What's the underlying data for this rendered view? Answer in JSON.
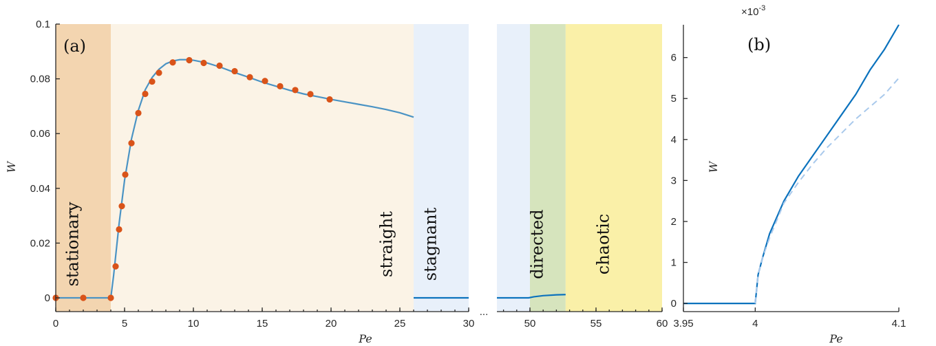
{
  "chart_data": [
    {
      "panel_label": "(a)",
      "type": "line",
      "xlabel": "Pe",
      "ylabel": "W",
      "ylim": [
        0,
        0.1
      ],
      "yticks": [
        "0",
        "0.02",
        "0.04",
        "0.06",
        "0.08",
        "0.1"
      ],
      "left_axis": {
        "xlim": [
          0,
          30
        ],
        "xticks": [
          "0",
          "5",
          "10",
          "15",
          "20",
          "25",
          "30"
        ]
      },
      "right_axis": {
        "xlim": [
          47.5,
          60
        ],
        "xticks": [
          "50",
          "55",
          "60"
        ]
      },
      "break_marker": "...",
      "regions": [
        {
          "label": "stationary",
          "x0": 0,
          "x1": 4,
          "color": "#f3d5b0"
        },
        {
          "label": "straight",
          "x0": 4,
          "x1": 26,
          "color": "#fbf3e6"
        },
        {
          "label": "stagnant",
          "x0": 26,
          "x1": 30,
          "color": "#e8f0fa"
        },
        {
          "label": "",
          "x0": 47.5,
          "x1": 50,
          "color": "#e8f0fa"
        },
        {
          "label": "directed",
          "x0": 50,
          "x1": 52.7,
          "color": "#d6e4bd"
        },
        {
          "label": "chaotic",
          "x0": 52.7,
          "x1": 60,
          "color": "#faf0a8"
        }
      ],
      "series": [
        {
          "style": "line",
          "color": "#4a93c4",
          "x": [
            0,
            4,
            4.2,
            4.6,
            5.0,
            5.5,
            6.0,
            6.5,
            7.0,
            7.5,
            8.0,
            8.5,
            9.0,
            9.5,
            10.0,
            11.0,
            12.0,
            13.0,
            14.0,
            15.0,
            16.0,
            17.0,
            18.0,
            19.0,
            20.0,
            21.0,
            22.0,
            23.0,
            24.0,
            25.0,
            26.0
          ],
          "y": [
            0,
            0,
            0.008,
            0.027,
            0.043,
            0.058,
            0.0685,
            0.076,
            0.0805,
            0.0835,
            0.0855,
            0.0865,
            0.087,
            0.087,
            0.0868,
            0.0858,
            0.0842,
            0.0823,
            0.0806,
            0.0788,
            0.0773,
            0.0758,
            0.0745,
            0.0735,
            0.0725,
            0.0716,
            0.0707,
            0.0698,
            0.0688,
            0.0676,
            0.066
          ]
        },
        {
          "style": "markers",
          "color": "#d95319",
          "x": [
            0,
            2,
            4,
            4.35,
            4.6,
            4.8,
            5.05,
            5.5,
            6.0,
            6.5,
            7.0,
            7.5,
            8.5,
            9.7,
            10.75,
            11.9,
            13.0,
            14.1,
            15.2,
            16.3,
            17.4,
            18.5,
            19.9
          ],
          "y": [
            0,
            0,
            0,
            0.0115,
            0.025,
            0.0335,
            0.045,
            0.0565,
            0.0675,
            0.0745,
            0.079,
            0.0822,
            0.086,
            0.0868,
            0.0858,
            0.0848,
            0.0828,
            0.0806,
            0.0792,
            0.0773,
            0.0759,
            0.0744,
            0.0725
          ]
        },
        {
          "style": "line",
          "color": "#0b72bd",
          "x": [
            26,
            30
          ],
          "y": [
            0,
            0
          ]
        },
        {
          "style": "line",
          "color": "#0b72bd",
          "x": [
            47.5,
            49.9,
            50.3,
            51.0,
            52.0,
            52.7
          ],
          "y": [
            0,
            0,
            0.0004,
            0.0008,
            0.0011,
            0.0012
          ]
        }
      ]
    },
    {
      "panel_label": "(b)",
      "type": "line",
      "xlabel": "Pe",
      "ylabel": "W",
      "y_multiplier_label": "×10",
      "y_multiplier_exp": "-3",
      "xlim": [
        3.95,
        4.1
      ],
      "ylim": [
        -0.0002,
        0.0068
      ],
      "xticks": [
        "3.95",
        "4",
        "4.1"
      ],
      "yticks": [
        "0",
        "1",
        "2",
        "3",
        "4",
        "5",
        "6"
      ],
      "series": [
        {
          "style": "line",
          "color": "#0b72bd",
          "x": [
            3.95,
            4.0,
            4.002,
            4.005,
            4.01,
            4.02,
            4.03,
            4.04,
            4.05,
            4.06,
            4.07,
            4.08,
            4.09,
            4.1
          ],
          "y": [
            0,
            0,
            0.0007,
            0.0011,
            0.0017,
            0.0025,
            0.0031,
            0.0036,
            0.0041,
            0.0046,
            0.0051,
            0.0057,
            0.0062,
            0.0068
          ]
        },
        {
          "style": "dashed",
          "color": "#a9c9ec",
          "x": [
            4.0,
            4.002,
            4.005,
            4.01,
            4.02,
            4.03,
            4.04,
            4.05,
            4.06,
            4.07,
            4.08,
            4.09,
            4.1
          ],
          "y": [
            0,
            0.0007,
            0.0011,
            0.0016,
            0.00245,
            0.00295,
            0.0034,
            0.0038,
            0.00415,
            0.0045,
            0.0048,
            0.0051,
            0.0055
          ]
        }
      ]
    }
  ]
}
